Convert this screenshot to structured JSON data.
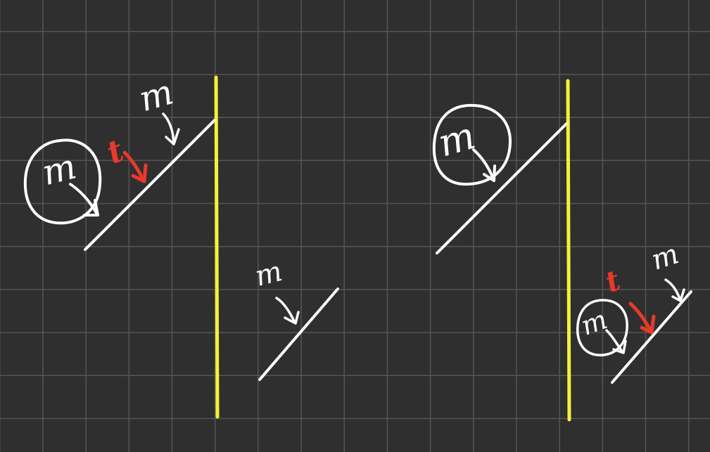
{
  "board": {
    "grid_color": "#555555",
    "background_color": "#2f2f2f"
  },
  "colors": {
    "ink": "#ffffff",
    "mirror": "#f2f23a",
    "accent": "#e8392b"
  },
  "labels": {
    "m": "m",
    "t": "t"
  }
}
